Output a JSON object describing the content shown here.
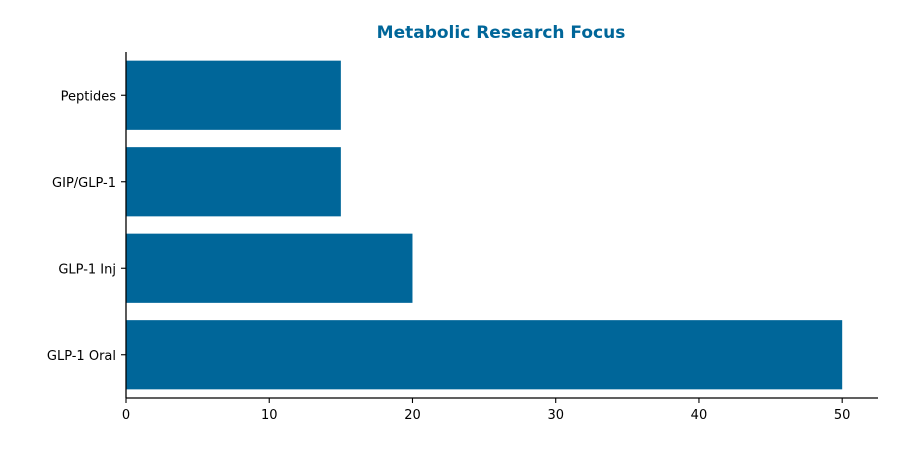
{
  "chart_data": {
    "type": "bar",
    "orientation": "horizontal",
    "title": "Metabolic Research Focus",
    "xlabel": "",
    "ylabel": "",
    "categories": [
      "GLP-1 Oral",
      "GLP-1 Inj",
      "GIP/GLP-1",
      "Peptides"
    ],
    "values": [
      50,
      20,
      15,
      15
    ],
    "xlim": [
      0,
      52.5
    ],
    "xticks": [
      0,
      10,
      20,
      30,
      40,
      50
    ],
    "grid": false,
    "legend": "none",
    "colors": {
      "bar": "#006699",
      "title": "#006699",
      "axis": "#000000"
    }
  }
}
